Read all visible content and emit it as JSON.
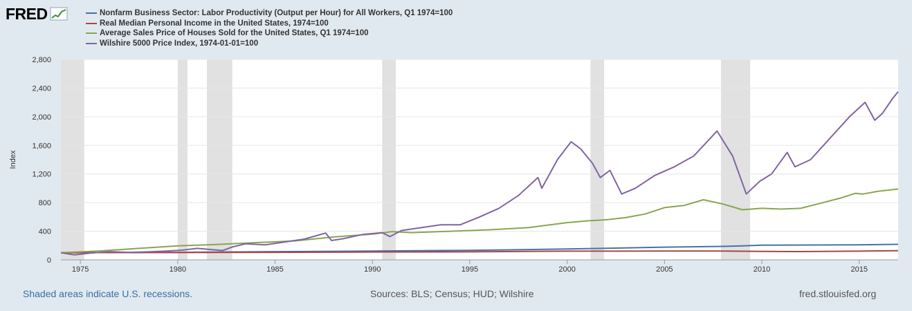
{
  "logo": {
    "text": "FRED",
    "icon": "fred-chart-icon"
  },
  "footer": {
    "recessions_note": "Shaded areas indicate U.S. recessions.",
    "sources": "Sources: BLS; Census; HUD; Wilshire",
    "site": "fred.stlouisfed.org"
  },
  "chart_data": {
    "type": "line",
    "ylabel": "Index",
    "xlim": [
      1974.0,
      2017.0
    ],
    "ylim": [
      0,
      2800
    ],
    "x_ticks": [
      1975,
      1980,
      1985,
      1990,
      1995,
      2000,
      2005,
      2010,
      2015
    ],
    "y_ticks": [
      0,
      400,
      800,
      1200,
      1600,
      2000,
      2400,
      2800
    ],
    "y_tick_labels": [
      "0",
      "400",
      "800",
      "1,200",
      "1,600",
      "2,000",
      "2,400",
      "2,800"
    ],
    "grid": true,
    "legend": "top-left",
    "recessions": [
      [
        1974.0,
        1975.2
      ],
      [
        1980.0,
        1980.5
      ],
      [
        1981.5,
        1982.8
      ],
      [
        1990.5,
        1991.2
      ],
      [
        2001.2,
        2001.9
      ],
      [
        2007.9,
        2009.4
      ]
    ],
    "series": [
      {
        "name": "Nonfarm Business Sector: Labor Productivity (Output per Hour) for All Workers, Q1 1974=100",
        "color": "#4572a7",
        "points": [
          [
            1974,
            100
          ],
          [
            1980,
            105
          ],
          [
            1985,
            115
          ],
          [
            1990,
            123
          ],
          [
            1995,
            133
          ],
          [
            2000,
            152
          ],
          [
            2005,
            178
          ],
          [
            2008,
            188
          ],
          [
            2009,
            195
          ],
          [
            2010,
            205
          ],
          [
            2015,
            210
          ],
          [
            2017,
            217
          ]
        ]
      },
      {
        "name": "Real Median Personal Income in the United States, 1974=100",
        "color": "#aa4643",
        "points": [
          [
            1974,
            100
          ],
          [
            1980,
            102
          ],
          [
            1985,
            105
          ],
          [
            1990,
            110
          ],
          [
            1995,
            112
          ],
          [
            2000,
            122
          ],
          [
            2005,
            123
          ],
          [
            2008,
            124
          ],
          [
            2010,
            118
          ],
          [
            2012,
            116
          ],
          [
            2015,
            122
          ],
          [
            2017,
            128
          ]
        ]
      },
      {
        "name": "Average Sales Price of Houses Sold for the United States, Q1 1974=100",
        "color": "#89a54e",
        "points": [
          [
            1974,
            100
          ],
          [
            1976,
            125
          ],
          [
            1978,
            160
          ],
          [
            1980,
            195
          ],
          [
            1982,
            215
          ],
          [
            1984,
            240
          ],
          [
            1986,
            265
          ],
          [
            1988,
            320
          ],
          [
            1990,
            360
          ],
          [
            1991,
            395
          ],
          [
            1992,
            380
          ],
          [
            1994,
            400
          ],
          [
            1996,
            420
          ],
          [
            1998,
            450
          ],
          [
            2000,
            520
          ],
          [
            2001,
            545
          ],
          [
            2002,
            560
          ],
          [
            2003,
            590
          ],
          [
            2004,
            640
          ],
          [
            2005,
            730
          ],
          [
            2006,
            760
          ],
          [
            2007,
            840
          ],
          [
            2008,
            780
          ],
          [
            2009,
            700
          ],
          [
            2010,
            720
          ],
          [
            2011,
            710
          ],
          [
            2012,
            720
          ],
          [
            2013,
            790
          ],
          [
            2014,
            860
          ],
          [
            2014.8,
            930
          ],
          [
            2015.2,
            920
          ],
          [
            2016,
            960
          ],
          [
            2017,
            990
          ]
        ]
      },
      {
        "name": "Wilshire 5000 Price Index, 1974-01-01=100",
        "color": "#8064a2",
        "points": [
          [
            1974,
            100
          ],
          [
            1974.7,
            70
          ],
          [
            1975.5,
            95
          ],
          [
            1976.5,
            115
          ],
          [
            1977.5,
            105
          ],
          [
            1978.5,
            112
          ],
          [
            1979.5,
            125
          ],
          [
            1980.2,
            135
          ],
          [
            1981,
            160
          ],
          [
            1982.3,
            130
          ],
          [
            1982.8,
            180
          ],
          [
            1983.5,
            225
          ],
          [
            1984.5,
            210
          ],
          [
            1985.5,
            250
          ],
          [
            1986.5,
            290
          ],
          [
            1987.6,
            375
          ],
          [
            1987.9,
            270
          ],
          [
            1988.5,
            295
          ],
          [
            1989.5,
            355
          ],
          [
            1990.5,
            380
          ],
          [
            1990.9,
            325
          ],
          [
            1991.5,
            410
          ],
          [
            1992.5,
            450
          ],
          [
            1993.5,
            490
          ],
          [
            1994.5,
            490
          ],
          [
            1995.5,
            600
          ],
          [
            1996.5,
            720
          ],
          [
            1997.5,
            900
          ],
          [
            1998.5,
            1150
          ],
          [
            1998.7,
            1000
          ],
          [
            1999.5,
            1400
          ],
          [
            2000.2,
            1650
          ],
          [
            2000.7,
            1550
          ],
          [
            2001.3,
            1350
          ],
          [
            2001.7,
            1150
          ],
          [
            2002.2,
            1250
          ],
          [
            2002.8,
            920
          ],
          [
            2003.5,
            1000
          ],
          [
            2004.5,
            1180
          ],
          [
            2005.5,
            1300
          ],
          [
            2006.5,
            1450
          ],
          [
            2007.7,
            1800
          ],
          [
            2008.5,
            1450
          ],
          [
            2009.2,
            920
          ],
          [
            2009.9,
            1100
          ],
          [
            2010.5,
            1200
          ],
          [
            2011.3,
            1500
          ],
          [
            2011.7,
            1300
          ],
          [
            2012.5,
            1400
          ],
          [
            2013.5,
            1700
          ],
          [
            2014.5,
            2000
          ],
          [
            2015.3,
            2200
          ],
          [
            2015.8,
            1950
          ],
          [
            2016.2,
            2050
          ],
          [
            2016.7,
            2250
          ],
          [
            2017,
            2350
          ]
        ]
      }
    ]
  }
}
